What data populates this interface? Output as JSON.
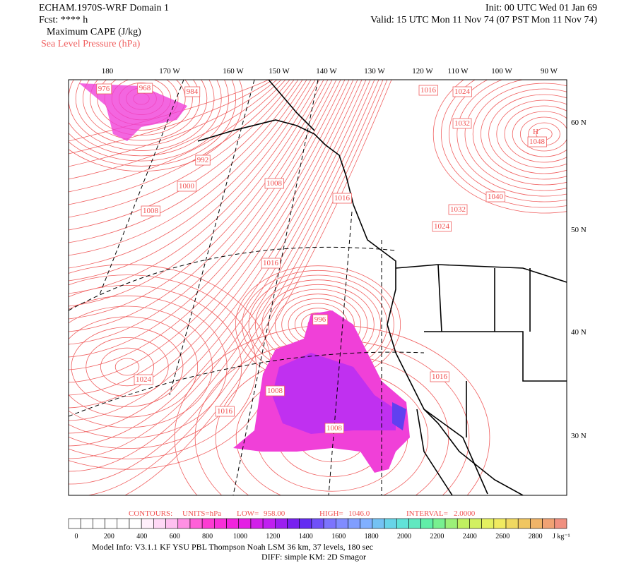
{
  "header": {
    "title": "ECHAM.1970S-WRF Domain 1",
    "forecast": "Fcst: **** h",
    "field": "Maximum CAPE (J/kg)",
    "overlay": "Sea Level Pressure (hPa)",
    "init": "Init: 00 UTC Wed 01 Jan 69",
    "valid": "Valid: 15 UTC Mon 11 Nov 74 (07 PST Mon 11 Nov 74)"
  },
  "longitude_labels": [
    "180",
    "170 W",
    "160 W",
    "150 W",
    "140 W",
    "130 W",
    "120 W",
    "110 W",
    "100 W",
    "90 W"
  ],
  "latitude_labels": [
    "60 N",
    "50 N",
    "40 N",
    "30 N"
  ],
  "contour_labels": [
    "976",
    "968",
    "984",
    "992",
    "1000",
    "1008",
    "1008",
    "1016",
    "1024",
    "1016",
    "1008",
    "1008",
    "996",
    "1016",
    "1024",
    "1032",
    "1040",
    "1032",
    "1024",
    "1016",
    "1016",
    "H",
    "1048"
  ],
  "contour_info": {
    "contours": "CONTOURS:",
    "units": "UNITS=hPa",
    "low": "LOW=",
    "low_value": "958.00",
    "high": "HIGH=",
    "high_value": "1046.0",
    "interval": "INTERVAL=",
    "interval_value": "2.0000"
  },
  "colorbar": {
    "labels": [
      "0",
      "200",
      "400",
      "600",
      "800",
      "1000",
      "1200",
      "1400",
      "1600",
      "1800",
      "2000",
      "2200",
      "2400",
      "2600",
      "2800"
    ],
    "units": "J kg⁻¹",
    "colors": [
      "#ffffff",
      "#ffffff",
      "#ffffff",
      "#ffc0f0",
      "#ff40d0",
      "#f020e0",
      "#c020f0",
      "#6020f0",
      "#8080ff",
      "#80b0ff",
      "#60e0e0",
      "#60f0a0",
      "#c0f060",
      "#f0f060",
      "#f0c060",
      "#f09080"
    ]
  },
  "footer": {
    "model_info": "Model Info: V3.1.1    KF      YSU PBL  Thompson     Noah LSM  36 km,    37 levels,  180 sec",
    "diff": "DIFF: simple KM: 2D Smagor"
  }
}
